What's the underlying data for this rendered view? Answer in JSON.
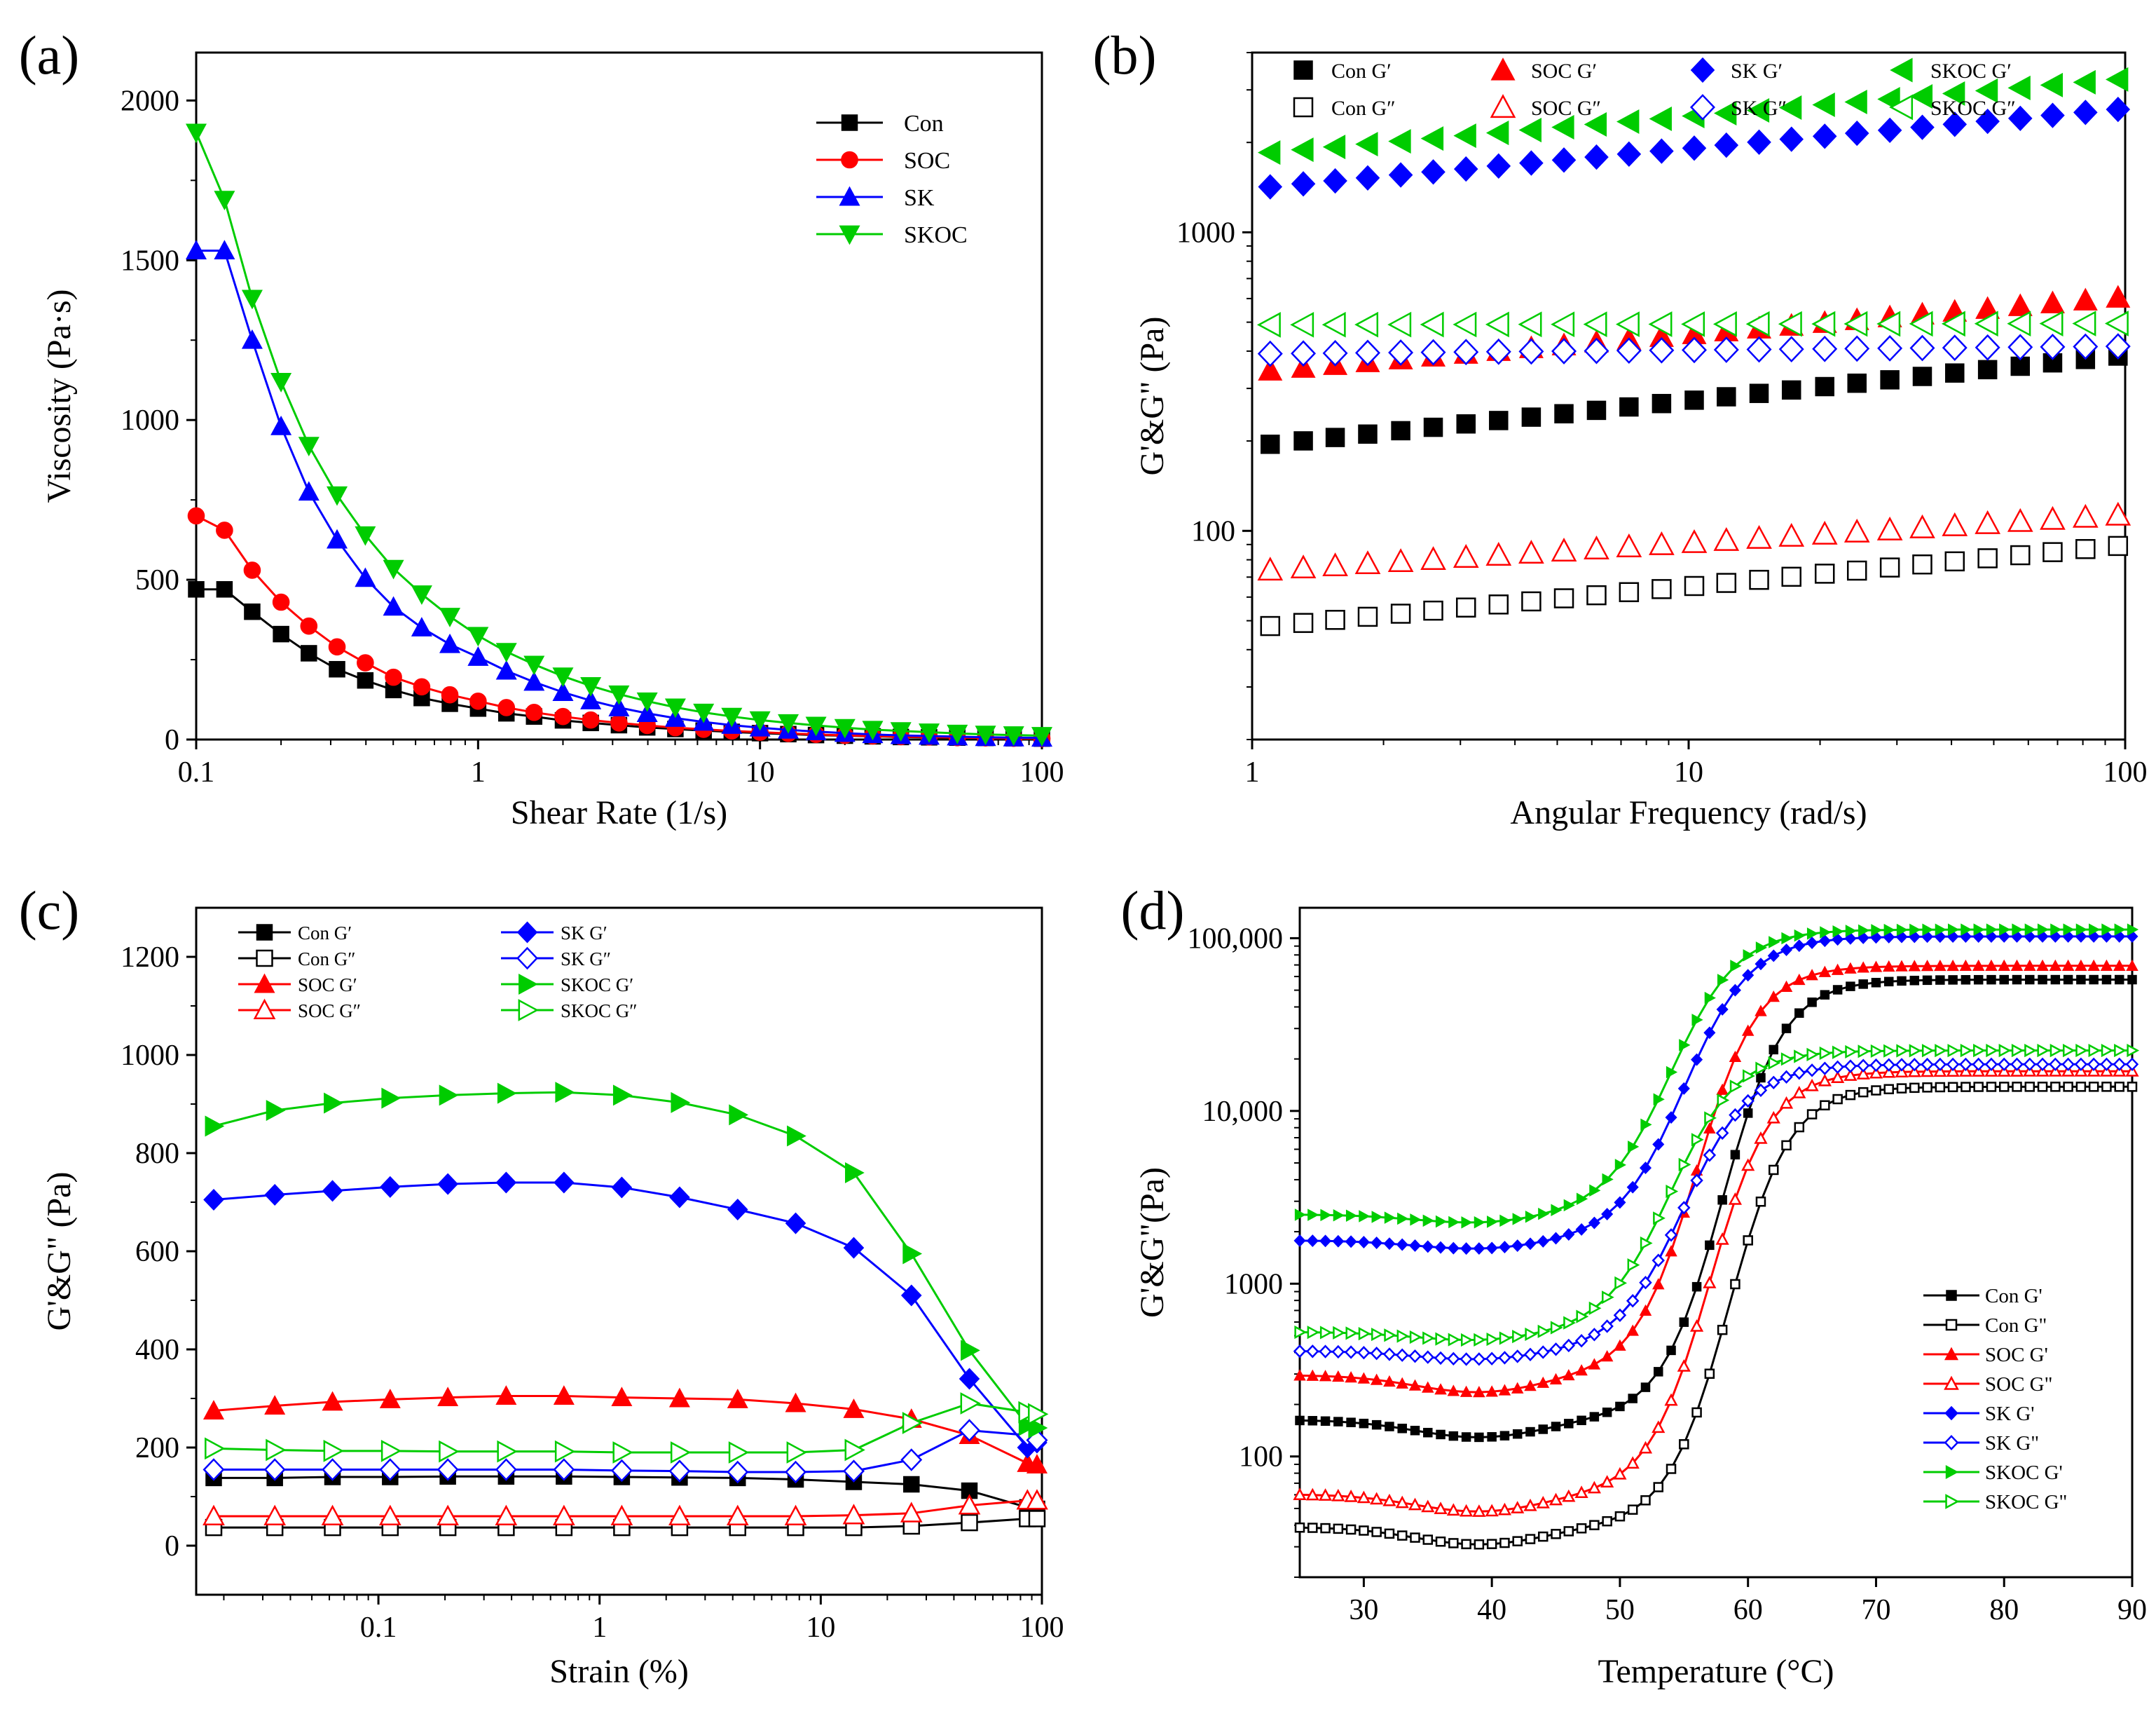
{
  "colors": {
    "black": "#000000",
    "red": "#ff0000",
    "blue": "#0000ff",
    "green": "#00cc00"
  },
  "chart_data": [
    {
      "type": "line",
      "panel_label": "(a)",
      "title": "",
      "xlabel": "Shear Rate (1/s)",
      "ylabel": "Viscosity (Pa·s)",
      "xscale": "log",
      "xlim": [
        0.1,
        100
      ],
      "ylim": [
        0,
        2150
      ],
      "xticks": [
        0.1,
        1,
        10,
        100
      ],
      "xtick_labels": [
        "0.1",
        "1",
        "10",
        "100"
      ],
      "yticks": [
        0,
        500,
        1000,
        1500,
        2000
      ],
      "ytick_labels": [
        "0",
        "500",
        "1000",
        "1500",
        "2000"
      ],
      "legend_position": "top-right",
      "x": [
        0.1,
        0.126,
        0.158,
        0.2,
        0.251,
        0.316,
        0.398,
        0.501,
        0.631,
        0.794,
        1,
        1.26,
        1.58,
        2,
        2.51,
        3.16,
        3.98,
        5.01,
        6.31,
        7.94,
        10,
        12.6,
        15.8,
        20,
        25.1,
        31.6,
        39.8,
        50.1,
        63.1,
        79.4,
        100
      ],
      "series": [
        {
          "name": "Con",
          "color": "#000000",
          "marker": "square",
          "filled": true,
          "values": [
            470,
            470,
            400,
            330,
            270,
            220,
            185,
            155,
            130,
            112,
            97,
            82,
            72,
            60,
            52,
            45,
            38,
            33,
            28,
            24,
            20,
            17,
            14,
            12,
            10,
            8,
            7,
            6,
            5,
            4,
            3
          ]
        },
        {
          "name": "SOC",
          "color": "#ff0000",
          "marker": "circle",
          "filled": true,
          "values": [
            700,
            655,
            530,
            430,
            355,
            290,
            240,
            195,
            165,
            140,
            120,
            100,
            85,
            72,
            61,
            52,
            44,
            37,
            32,
            27,
            23,
            19,
            16,
            13,
            11,
            9,
            8,
            6,
            5,
            4,
            3
          ]
        },
        {
          "name": "SK",
          "color": "#0000ff",
          "marker": "triangle-up",
          "filled": true,
          "values": [
            1530,
            1530,
            1250,
            980,
            775,
            625,
            505,
            415,
            350,
            298,
            258,
            215,
            180,
            148,
            122,
            100,
            82,
            67,
            55,
            45,
            37,
            30,
            25,
            20,
            16,
            13,
            11,
            9,
            7,
            6,
            5
          ]
        },
        {
          "name": "SKOC",
          "color": "#00cc00",
          "marker": "triangle-down",
          "filled": true,
          "values": [
            1900,
            1690,
            1380,
            1120,
            920,
            765,
            640,
            535,
            455,
            385,
            325,
            275,
            235,
            198,
            168,
            142,
            120,
            101,
            85,
            72,
            61,
            52,
            44,
            37,
            31,
            27,
            23,
            19,
            16,
            14,
            12
          ]
        }
      ]
    },
    {
      "type": "scatter",
      "panel_label": "(b)",
      "title": "",
      "xlabel": "Angular Frequency (rad/s)",
      "ylabel": "G'&G\" (Pa)",
      "xscale": "log",
      "yscale": "log",
      "xlim": [
        1,
        100
      ],
      "ylim": [
        20,
        4000
      ],
      "xticks": [
        1,
        10,
        100
      ],
      "xtick_labels": [
        "1",
        "10",
        "100"
      ],
      "yticks": [
        100,
        1000
      ],
      "ytick_labels": [
        "100",
        "1000"
      ],
      "legend_position": "top",
      "x": [
        1.1,
        1.31,
        1.55,
        1.84,
        2.19,
        2.6,
        3.09,
        3.67,
        4.36,
        5.18,
        6.15,
        7.3,
        8.67,
        10.3,
        12.2,
        14.5,
        17.2,
        20.5,
        24.3,
        28.9,
        34.3,
        40.7,
        48.4,
        57.5,
        68.2,
        81.1,
        96.3
      ],
      "series": [
        {
          "name": "Con G′",
          "color": "#000000",
          "marker": "square",
          "filled": true,
          "start": 195,
          "end": 385
        },
        {
          "name": "Con G″",
          "color": "#000000",
          "marker": "square",
          "filled": false,
          "start": 48,
          "end": 89
        },
        {
          "name": "SOC G′",
          "color": "#ff0000",
          "marker": "triangle-up",
          "filled": true,
          "start": 345,
          "end": 605
        },
        {
          "name": "SOC G″",
          "color": "#ff0000",
          "marker": "triangle-up",
          "filled": false,
          "start": 74,
          "end": 113
        },
        {
          "name": "SK G′",
          "color": "#0000ff",
          "marker": "diamond",
          "filled": true,
          "start": 1420,
          "end": 2580
        },
        {
          "name": "SK G″",
          "color": "#0000ff",
          "marker": "diamond",
          "filled": false,
          "start": 392,
          "end": 415
        },
        {
          "name": "SKOC G′",
          "color": "#00cc00",
          "marker": "triangle-left",
          "filled": true,
          "start": 1850,
          "end": 3250
        },
        {
          "name": "SKOC G″",
          "color": "#00cc00",
          "marker": "triangle-left",
          "filled": false,
          "start": 490,
          "end": 495
        }
      ]
    },
    {
      "type": "line",
      "panel_label": "(c)",
      "title": "",
      "xlabel": "Strain (%)",
      "ylabel": "G'&G\" (Pa)",
      "xscale": "log",
      "xlim": [
        0.015,
        100
      ],
      "ylim": [
        -100,
        1300
      ],
      "xticks": [
        0.1,
        1,
        10,
        100
      ],
      "xtick_labels": [
        "0.1",
        "1",
        "10",
        "100"
      ],
      "yticks": [
        0,
        200,
        400,
        600,
        800,
        1000,
        1200
      ],
      "ytick_labels": [
        "0",
        "200",
        "400",
        "600",
        "800",
        "1000",
        "1200"
      ],
      "legend_position": "top-left",
      "x": [
        0.018,
        0.034,
        0.062,
        0.113,
        0.206,
        0.378,
        0.69,
        1.26,
        2.3,
        4.21,
        7.7,
        14.1,
        25.7,
        47,
        86,
        95
      ],
      "series": [
        {
          "name": "Con G′",
          "color": "#000000",
          "marker": "square",
          "filled": true,
          "values": [
            138,
            138,
            140,
            140,
            141,
            141,
            141,
            140,
            139,
            138,
            135,
            130,
            125,
            112,
            78,
            75
          ]
        },
        {
          "name": "Con G″",
          "color": "#000000",
          "marker": "square",
          "filled": false,
          "values": [
            37,
            37,
            37,
            37,
            37,
            37,
            37,
            37,
            37,
            37,
            37,
            37,
            40,
            47,
            55,
            55
          ]
        },
        {
          "name": "SOC G′",
          "color": "#ff0000",
          "marker": "triangle-up",
          "filled": true,
          "values": [
            275,
            285,
            293,
            298,
            302,
            305,
            305,
            302,
            300,
            298,
            290,
            278,
            258,
            225,
            168,
            165
          ]
        },
        {
          "name": "SOC G″",
          "color": "#ff0000",
          "marker": "triangle-up",
          "filled": false,
          "values": [
            60,
            60,
            60,
            60,
            60,
            60,
            60,
            60,
            60,
            60,
            60,
            62,
            66,
            82,
            92,
            92
          ]
        },
        {
          "name": "SK G′",
          "color": "#0000ff",
          "marker": "diamond",
          "filled": true,
          "values": [
            705,
            715,
            723,
            731,
            737,
            740,
            740,
            730,
            710,
            685,
            657,
            607,
            510,
            340,
            200,
            210
          ]
        },
        {
          "name": "SK G″",
          "color": "#0000ff",
          "marker": "diamond",
          "filled": false,
          "values": [
            155,
            155,
            155,
            155,
            155,
            155,
            155,
            153,
            152,
            150,
            150,
            152,
            175,
            235,
            225,
            215
          ]
        },
        {
          "name": "SKOC G′",
          "color": "#00cc00",
          "marker": "triangle-right",
          "filled": true,
          "values": [
            855,
            887,
            902,
            912,
            918,
            922,
            924,
            918,
            903,
            878,
            835,
            760,
            595,
            398,
            245,
            240
          ]
        },
        {
          "name": "SKOC G″",
          "color": "#00cc00",
          "marker": "triangle-right",
          "filled": false,
          "values": [
            198,
            195,
            193,
            193,
            192,
            192,
            192,
            190,
            190,
            190,
            190,
            195,
            250,
            290,
            272,
            268
          ]
        }
      ]
    },
    {
      "type": "line",
      "panel_label": "(d)",
      "title": "",
      "xlabel": "Temperature (°C)",
      "ylabel": "G'&G\"(Pa)",
      "yscale": "log",
      "xlim": [
        25,
        90
      ],
      "ylim": [
        20,
        150000
      ],
      "xticks": [
        30,
        40,
        50,
        60,
        70,
        80,
        90
      ],
      "xtick_labels": [
        "30",
        "40",
        "50",
        "60",
        "70",
        "80",
        "90"
      ],
      "yticks": [
        100,
        1000,
        10000,
        100000
      ],
      "ytick_labels": [
        "100",
        "1000",
        "10,000",
        "100,000"
      ],
      "legend_position": "bottom-right",
      "curve_model": "sigmoid in log10(G): logG(T) = low + (T<40 ? -dip*(1-((T-40)/15)^2) : 0) + (high-low)/(1+exp(-(T-mid)/width)), sampled every 1 °C from 25 to 90",
      "series": [
        {
          "name": "Con G'",
          "color": "#000000",
          "marker": "square",
          "filled": true,
          "low": 2.21,
          "high": 4.76,
          "mid": 58,
          "width": 2.4,
          "dip": 0.1
        },
        {
          "name": "Con G\"",
          "color": "#000000",
          "marker": "square",
          "filled": false,
          "low": 1.59,
          "high": 4.14,
          "mid": 58.5,
          "width": 2.4,
          "dip": 0.1
        },
        {
          "name": "SOC G'",
          "color": "#ff0000",
          "marker": "triangle-up",
          "filled": true,
          "low": 2.47,
          "high": 4.84,
          "mid": 56,
          "width": 2.4,
          "dip": 0.1
        },
        {
          "name": "SOC G\"",
          "color": "#ff0000",
          "marker": "triangle-up",
          "filled": false,
          "low": 1.78,
          "high": 4.23,
          "mid": 57,
          "width": 2.4,
          "dip": 0.1
        },
        {
          "name": "SK G'",
          "color": "#0000ff",
          "marker": "diamond",
          "filled": true,
          "low": 3.25,
          "high": 5.01,
          "mid": 55,
          "width": 2.6,
          "dip": 0.05
        },
        {
          "name": "SK G\"",
          "color": "#0000ff",
          "marker": "diamond",
          "filled": false,
          "low": 2.61,
          "high": 4.27,
          "mid": 55,
          "width": 2.6,
          "dip": 0.05
        },
        {
          "name": "SKOC G'",
          "color": "#00cc00",
          "marker": "triangle-right",
          "filled": true,
          "low": 3.4,
          "high": 5.05,
          "mid": 54,
          "width": 2.6,
          "dip": 0.05
        },
        {
          "name": "SKOC G\"",
          "color": "#00cc00",
          "marker": "triangle-right",
          "filled": false,
          "low": 2.72,
          "high": 4.35,
          "mid": 54,
          "width": 2.6,
          "dip": 0.05
        }
      ]
    }
  ]
}
